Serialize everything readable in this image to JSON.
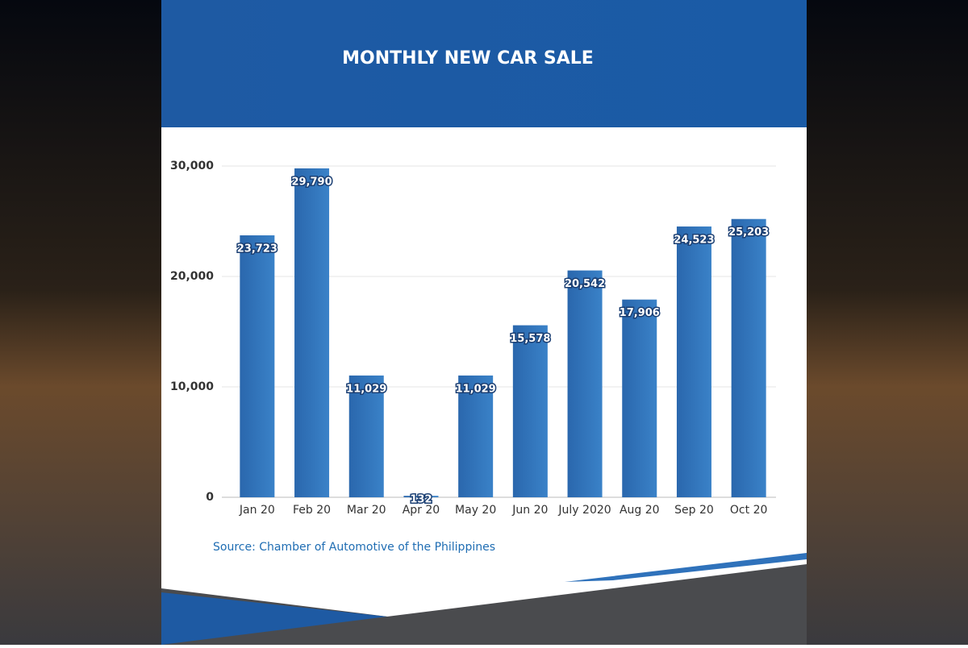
{
  "chart_data": {
    "type": "bar",
    "title": "MONTHLY NEW CAR SALE",
    "categories": [
      "Jan 20",
      "Feb 20",
      "Mar 20",
      "Apr 20",
      "May 20",
      "Jun 20",
      "July 2020",
      "Aug 20",
      "Sep 20",
      "Oct 20"
    ],
    "values": [
      23723,
      29790,
      11029,
      132,
      11029,
      15578,
      20542,
      17906,
      24523,
      25203
    ],
    "value_labels": [
      "23,723",
      "29,790",
      "11,029",
      "132",
      "11,029",
      "15,578",
      "20,542",
      "17,906",
      "24,523",
      "25,203"
    ],
    "color": "#2f72bb",
    "ylim": [
      0,
      30000
    ],
    "yticks": [
      0,
      {
        "value": 10000,
        "label": "10,000"
      },
      {
        "value": 20000,
        "label": "20,000"
      },
      {
        "value": 30000,
        "label": "30,000"
      }
    ],
    "grid": true,
    "source": "Source: Chamber of Automotive of the Philippines"
  }
}
